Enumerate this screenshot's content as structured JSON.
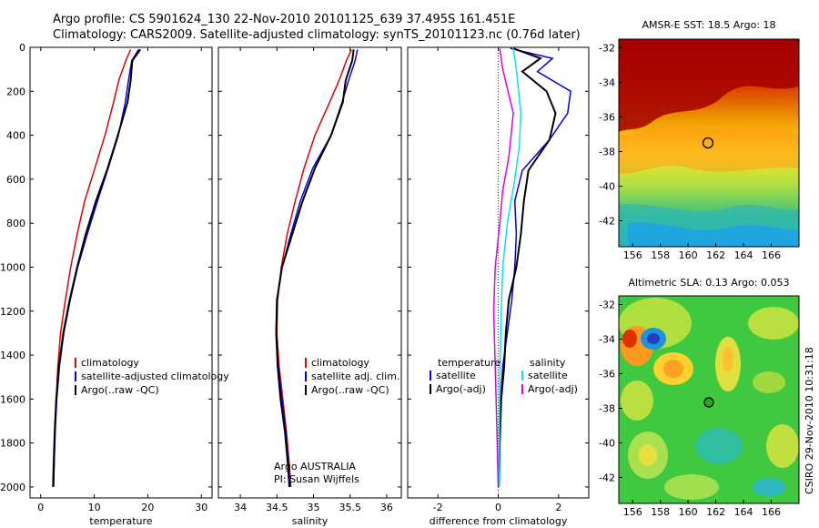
{
  "header": {
    "line1": "Argo profile: CS 5901624_130 22-Nov-2010 20101125_639 37.495S 161.451E",
    "line2": "Climatology: CARS2009. Satellite-adjusted climatology: synTS_20101123.nc (0.76d later)"
  },
  "side_text": "CSIRO 29-Nov-2010 10:31:18",
  "colors": {
    "red": "#e00000",
    "blue": "#0000e0",
    "black": "#000000",
    "cyan": "#00e8e8",
    "magenta": "#e000e0"
  },
  "chart_data": [
    {
      "type": "line",
      "xlabel": "temperature",
      "xlim": [
        -2,
        32
      ],
      "ylim": [
        0,
        2050
      ],
      "x_ticks": [
        0,
        10,
        20,
        30
      ],
      "y_ticks": [
        0,
        200,
        400,
        600,
        800,
        1000,
        1200,
        1400,
        1600,
        1800,
        2000
      ],
      "legend": [
        "climatology",
        "satellite-adjusted climatology",
        "Argo(..raw -QC)"
      ],
      "series": [
        {
          "name": "climatology",
          "color": "red",
          "x": [
            16.8,
            15.9,
            14.6,
            13.6,
            12.0,
            10.1,
            8.2,
            6.8,
            5.6,
            4.6,
            3.7,
            3.2,
            2.9,
            2.7,
            2.5,
            2.4
          ],
          "y": [
            10,
            60,
            150,
            250,
            400,
            550,
            700,
            850,
            1000,
            1150,
            1300,
            1450,
            1600,
            1750,
            1900,
            2000
          ]
        },
        {
          "name": "satellite-adjusted climatology",
          "color": "blue",
          "x": [
            18.3,
            17.0,
            16.4,
            15.8,
            14.5,
            12.6,
            10.6,
            8.7,
            6.9,
            5.5,
            4.3,
            3.5,
            3.0,
            2.7,
            2.5,
            2.4
          ],
          "y": [
            10,
            60,
            150,
            250,
            400,
            550,
            700,
            850,
            1000,
            1150,
            1300,
            1450,
            1600,
            1750,
            1900,
            2000
          ]
        },
        {
          "name": "Argo(..raw -QC)",
          "color": "black",
          "x": [
            18.6,
            17.1,
            16.8,
            16.2,
            14.4,
            12.5,
            10.3,
            8.4,
            6.8,
            5.4,
            4.2,
            3.4,
            2.9,
            2.6,
            2.4,
            2.3
          ],
          "y": [
            10,
            60,
            150,
            250,
            400,
            550,
            700,
            850,
            1000,
            1150,
            1300,
            1450,
            1600,
            1750,
            1900,
            2000
          ]
        }
      ]
    },
    {
      "type": "line",
      "xlabel": "salinity",
      "xlim": [
        33.7,
        36.2
      ],
      "ylim": [
        0,
        2050
      ],
      "x_ticks": [
        34,
        34.5,
        35,
        35.5,
        36
      ],
      "legend": [
        "climatology",
        "satellite adj. clim.",
        "Argo(..raw -QC)"
      ],
      "annotation": [
        "Argo AUSTRALIA",
        "PI: Susan Wijffels"
      ],
      "series": [
        {
          "name": "climatology",
          "color": "red",
          "x": [
            35.52,
            35.45,
            35.35,
            35.22,
            35.02,
            34.87,
            34.75,
            34.64,
            34.56,
            34.51,
            34.5,
            34.53,
            34.58,
            34.63,
            34.67,
            34.69
          ],
          "y": [
            10,
            60,
            150,
            250,
            400,
            550,
            700,
            850,
            1000,
            1150,
            1300,
            1450,
            1600,
            1750,
            1900,
            2000
          ]
        },
        {
          "name": "satellite adj. clim.",
          "color": "blue",
          "x": [
            35.6,
            35.57,
            35.48,
            35.39,
            35.24,
            34.99,
            34.82,
            34.69,
            34.57,
            34.5,
            34.49,
            34.52,
            34.57,
            34.62,
            34.66,
            34.68
          ],
          "y": [
            10,
            60,
            150,
            250,
            400,
            550,
            700,
            850,
            1000,
            1150,
            1300,
            1450,
            1600,
            1750,
            1900,
            2000
          ]
        },
        {
          "name": "Argo(..raw -QC)",
          "color": "black",
          "x": [
            35.55,
            35.53,
            35.44,
            35.4,
            35.24,
            35.02,
            34.85,
            34.71,
            34.57,
            34.5,
            34.49,
            34.51,
            34.55,
            34.61,
            34.65,
            34.67
          ],
          "y": [
            10,
            60,
            150,
            250,
            400,
            550,
            700,
            850,
            1000,
            1150,
            1300,
            1450,
            1600,
            1750,
            1900,
            2000
          ]
        }
      ]
    },
    {
      "type": "line",
      "xlabel": "difference from climatology",
      "xlim": [
        -3,
        3
      ],
      "ylim": [
        0,
        2050
      ],
      "x_ticks": [
        -2,
        0,
        2
      ],
      "legend_left_title": "temperature",
      "legend_right_title": "salinity",
      "legend_left": [
        "satellite",
        "Argo(-adj)"
      ],
      "legend_right": [
        "satellite",
        "Argo(-adj)"
      ],
      "series": [
        {
          "name": "temperature satellite",
          "color": "blue",
          "x": [
            0.4,
            1.8,
            1.3,
            2.4,
            2.3,
            1.7,
            0.8,
            0.55,
            0.6,
            0.55,
            0.45,
            0.3,
            0.15,
            0.08,
            0.05,
            0.02
          ],
          "y": [
            5,
            50,
            110,
            200,
            300,
            420,
            560,
            700,
            850,
            1000,
            1150,
            1300,
            1450,
            1600,
            1800,
            2000
          ]
        },
        {
          "name": "temperature Argo(-adj)",
          "color": "black",
          "x": [
            0.5,
            1.4,
            0.8,
            1.6,
            1.9,
            1.7,
            1.0,
            0.85,
            0.75,
            0.6,
            0.35,
            0.25,
            0.2,
            0.1,
            0.05,
            0.02
          ],
          "y": [
            5,
            50,
            110,
            200,
            300,
            420,
            560,
            700,
            850,
            1000,
            1150,
            1300,
            1450,
            1600,
            1800,
            2000
          ]
        },
        {
          "name": "salinity satellite",
          "color": "cyan",
          "x": [
            0.5,
            0.6,
            0.75,
            0.7,
            0.55,
            0.3,
            0.15,
            0.1,
            0.05,
            0.02
          ],
          "y": [
            5,
            100,
            300,
            450,
            600,
            800,
            1000,
            1200,
            1500,
            2000
          ]
        },
        {
          "name": "salinity Argo(-adj)",
          "color": "magenta",
          "x": [
            0.05,
            0.15,
            0.5,
            0.35,
            0.15,
            0.05,
            -0.1,
            -0.15,
            -0.1,
            -0.05,
            0.0
          ],
          "y": [
            5,
            100,
            300,
            500,
            650,
            800,
            1000,
            1200,
            1450,
            1700,
            2000
          ]
        }
      ]
    }
  ],
  "maps": [
    {
      "title": "AMSR-E SST: 18.5 Argo: 18",
      "lon_ticks": [
        "156",
        "158",
        "160",
        "162",
        "164",
        "166"
      ],
      "lat_ticks": [
        "-32",
        "-34",
        "-36",
        "-38",
        "-40",
        "-42"
      ],
      "marker_fill": "none"
    },
    {
      "title": "Altimetric SLA: 0.13 Argo: 0.053",
      "lon_ticks": [
        "156",
        "158",
        "160",
        "162",
        "164",
        "166"
      ],
      "lat_ticks": [
        "-32",
        "-34",
        "-36",
        "-38",
        "-40",
        "-42"
      ],
      "marker_fill": "#22aa22"
    }
  ]
}
